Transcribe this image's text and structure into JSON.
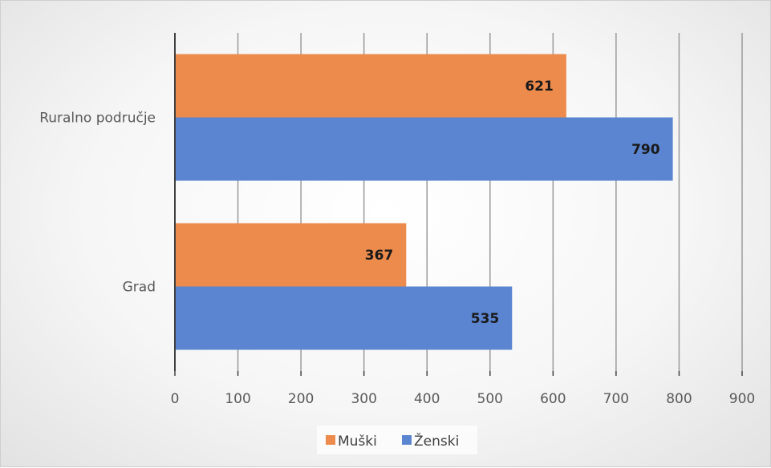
{
  "chart_data": {
    "type": "bar",
    "orientation": "horizontal",
    "categories": [
      "Ruralno područje",
      "Grad"
    ],
    "series": [
      {
        "name": "Muški",
        "values": [
          621,
          367
        ],
        "color": "#ed8b4c"
      },
      {
        "name": "Ženski",
        "values": [
          790,
          535
        ],
        "color": "#5b85d0"
      }
    ],
    "xlim": [
      0,
      900
    ],
    "x_ticks": [
      "0",
      "100",
      "200",
      "300",
      "400",
      "500",
      "600",
      "700",
      "800",
      "900"
    ],
    "grid": true,
    "legend_position": "bottom",
    "data_labels": true
  }
}
